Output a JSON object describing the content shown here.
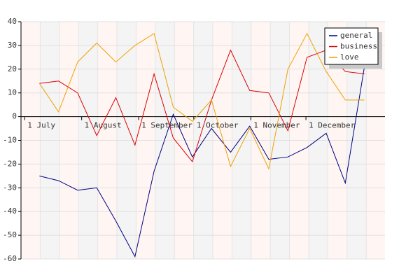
{
  "chart_data": {
    "type": "line",
    "x": [
      8,
      18.4,
      28.8,
      39.2,
      49.6,
      60,
      70.4,
      80.8,
      91.2,
      101.6,
      112,
      122.4,
      132.8,
      143.2,
      153.6,
      164,
      174.4,
      184.8
    ],
    "series": [
      {
        "name": "general",
        "color": "#000080",
        "values": [
          -25,
          -27,
          -31,
          -30,
          -44,
          -59,
          -23,
          1,
          -17,
          -5,
          -15,
          -4,
          -18,
          -17,
          -13,
          -7,
          -28,
          21
        ]
      },
      {
        "name": "business",
        "color": "#dd0000",
        "values": [
          14,
          15,
          10,
          -8,
          8,
          -12,
          18,
          -9,
          -19,
          7,
          28,
          11,
          10,
          -6,
          25,
          28,
          19,
          18
        ]
      },
      {
        "name": "love",
        "color": "#f0a000",
        "values": [
          14,
          2,
          23,
          31,
          23,
          30,
          35,
          4,
          -2,
          7,
          -21,
          -5,
          -22,
          20,
          35,
          19,
          7,
          7
        ]
      }
    ],
    "xlim": [
      -2,
      196
    ],
    "xticks": [
      {
        "value": 0,
        "label": "1 July"
      },
      {
        "value": 31,
        "label": "1 August"
      },
      {
        "value": 62,
        "label": "1 September"
      },
      {
        "value": 92,
        "label": "1 October"
      },
      {
        "value": 123,
        "label": "1 November"
      },
      {
        "value": 153,
        "label": "1 December"
      }
    ],
    "ylim": [
      -60,
      40
    ],
    "yticks": [
      -60,
      -50,
      -40,
      -30,
      -20,
      -10,
      0,
      10,
      20,
      30,
      40
    ],
    "grid": true,
    "legend": "upper right"
  }
}
